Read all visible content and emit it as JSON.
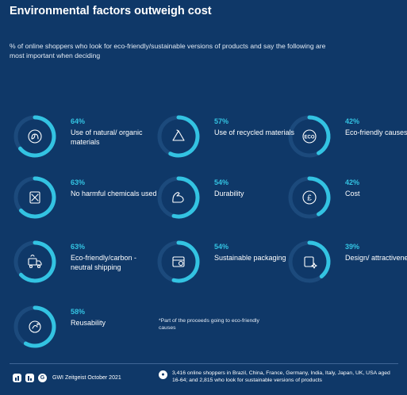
{
  "header": {
    "title": "Environmental factors outweigh cost",
    "subtitle": "% of online shoppers who look for eco-friendly/sustainable versions of products and say the following are most important when deciding"
  },
  "chart_data": {
    "type": "radial",
    "unit": "%",
    "items": [
      {
        "label": "Use of natural/ organic materials",
        "value": 64,
        "icon": "leaves-icon"
      },
      {
        "label": "Use of recycled materials",
        "value": 57,
        "icon": "recycle-icon"
      },
      {
        "label": "Eco-friendly causes*",
        "value": 42,
        "icon": "eco-badge-icon"
      },
      {
        "label": "No harmful chemicals used",
        "value": 63,
        "icon": "no-chemicals-icon"
      },
      {
        "label": "Durability",
        "value": 54,
        "icon": "flexed-arm-icon"
      },
      {
        "label": "Cost",
        "value": 42,
        "icon": "pound-coin-icon"
      },
      {
        "label": "Eco-friendly/carbon -neutral shipping",
        "value": 63,
        "icon": "delivery-truck-icon"
      },
      {
        "label": "Sustainable packaging",
        "value": 54,
        "icon": "package-icon"
      },
      {
        "label": "Design/ attractiveness",
        "value": 39,
        "icon": "sparkle-design-icon"
      },
      {
        "label": "Reusability",
        "value": 58,
        "icon": "reuse-icon"
      }
    ],
    "arc_color": "#33c3e2",
    "track_color": "#1c4a7c"
  },
  "note": "*Part of the proceeds going to eco-friendly causes",
  "footer": {
    "source": "GWI Zeitgeist October 2021",
    "sample": "3,416 online shoppers in Brazil, China, France, Germany, India, Italy, Japan, UK, USA aged 16-64; and 2,815 who look for sustainable versions of products"
  }
}
